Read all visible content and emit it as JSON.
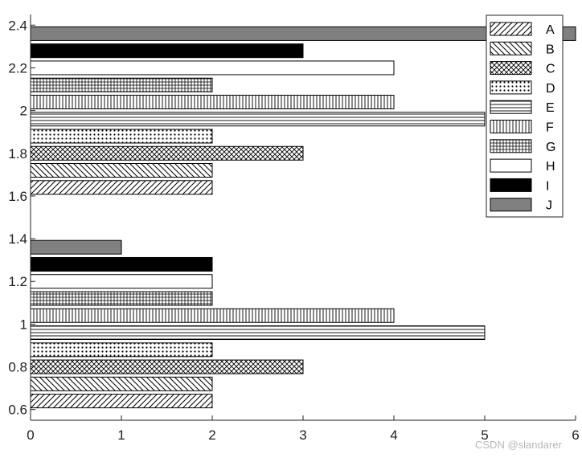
{
  "chart_data": {
    "type": "bar",
    "orientation": "horizontal",
    "groups": [
      1,
      2
    ],
    "series": [
      {
        "name": "A",
        "values": [
          2,
          2
        ],
        "pattern": "diag-up"
      },
      {
        "name": "B",
        "values": [
          2,
          2
        ],
        "pattern": "diag-down"
      },
      {
        "name": "C",
        "values": [
          3,
          3
        ],
        "pattern": "crosshatch"
      },
      {
        "name": "D",
        "values": [
          2,
          2
        ],
        "pattern": "dots"
      },
      {
        "name": "E",
        "values": [
          5,
          5
        ],
        "pattern": "horizontal"
      },
      {
        "name": "F",
        "values": [
          4,
          4
        ],
        "pattern": "vertical"
      },
      {
        "name": "G",
        "values": [
          2,
          2
        ],
        "pattern": "grid"
      },
      {
        "name": "H",
        "values": [
          2,
          4
        ],
        "pattern": "white"
      },
      {
        "name": "I",
        "values": [
          2,
          3
        ],
        "pattern": "black"
      },
      {
        "name": "J",
        "values": [
          1,
          6
        ],
        "pattern": "gray"
      }
    ],
    "xlim": [
      0,
      6
    ],
    "ylim": [
      0.55,
      2.45
    ],
    "xticks": [
      "0",
      "1",
      "2",
      "3",
      "4",
      "5",
      "6"
    ],
    "yticks": [
      "0.6",
      "0.8",
      "1",
      "1.2",
      "1.4",
      "1.6",
      "1.8",
      "2",
      "2.2",
      "2.4"
    ],
    "legend_placement": "top-right",
    "grid": false,
    "colors": {
      "gray": "#808080",
      "black": "#000000",
      "white": "#ffffff",
      "edge": "#000000"
    }
  },
  "watermark": "CSDN @slandarer"
}
